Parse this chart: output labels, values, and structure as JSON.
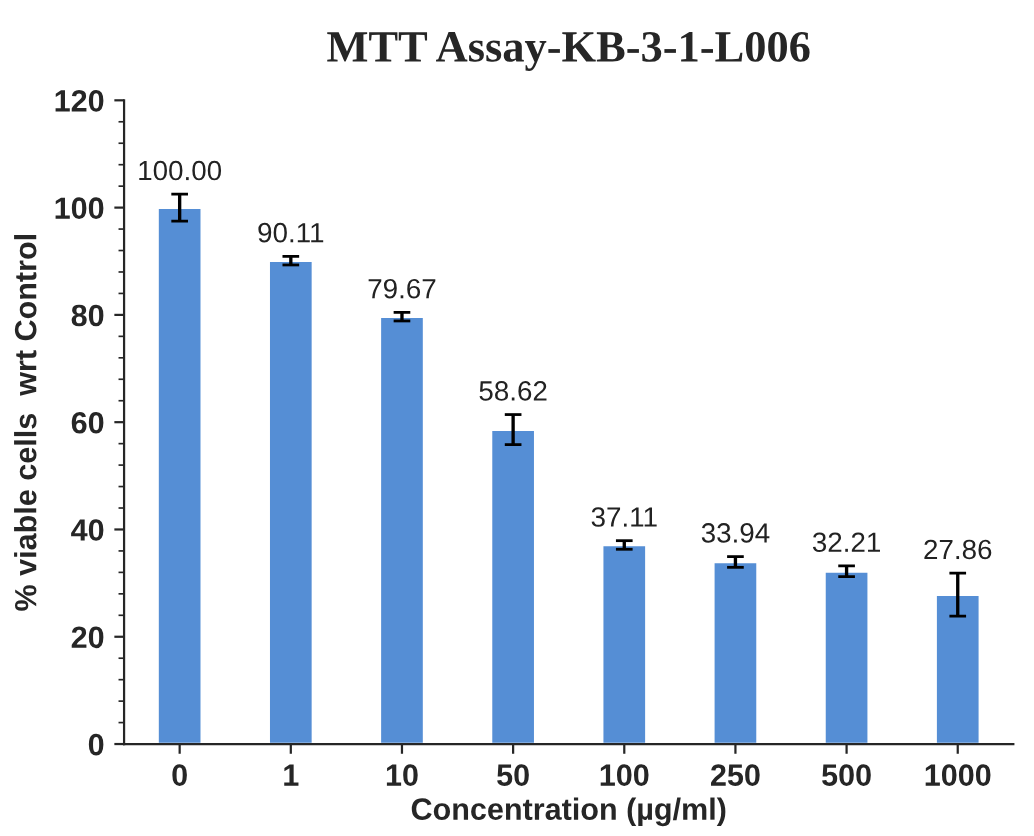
{
  "chart_data": {
    "type": "bar",
    "title": "MTT Assay-KB-3-1-L006",
    "xlabel": "Concentration (µg/ml)",
    "ylabel": "% viable cells  wrt Control",
    "categories": [
      "0",
      "1",
      "10",
      "50",
      "100",
      "250",
      "500",
      "1000"
    ],
    "values": [
      100.0,
      90.11,
      79.67,
      58.62,
      37.11,
      33.94,
      32.21,
      27.86
    ],
    "value_labels": [
      "100.00",
      "90.11",
      "79.67",
      "58.62",
      "37.11",
      "33.94",
      "32.21",
      "27.86"
    ],
    "errors": [
      2.5,
      0.8,
      0.8,
      2.8,
      0.8,
      1.0,
      1.0,
      4.0
    ],
    "color": "#558ed5",
    "ylim": [
      0,
      120
    ],
    "yticks": [
      0,
      20,
      40,
      60,
      80,
      100,
      120
    ],
    "grid": false
  }
}
